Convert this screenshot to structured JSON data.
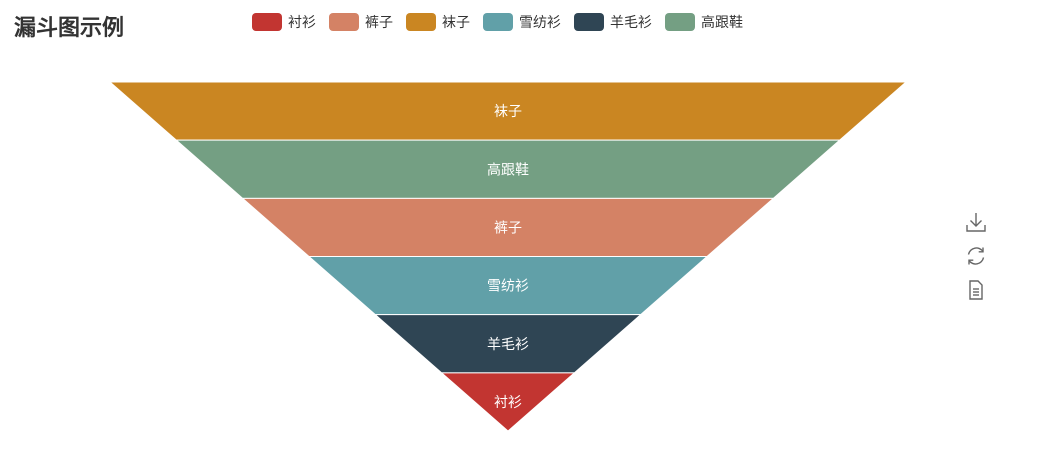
{
  "chart_data": {
    "type": "funnel",
    "title": "漏斗图示例",
    "legend": [
      "衬衫",
      "裤子",
      "袜子",
      "雪纺衫",
      "羊毛衫",
      "高跟鞋"
    ],
    "colors": {
      "衬衫": "#c23531",
      "裤子": "#d48265",
      "袜子": "#ca8622",
      "雪纺衫": "#61a0a8",
      "羊毛衫": "#2f4554",
      "高跟鞋": "#749f83"
    },
    "layers": [
      "袜子",
      "高跟鞋",
      "裤子",
      "雪纺衫",
      "羊毛衫",
      "衬衫"
    ],
    "legend_placement": "top",
    "sort": "descending"
  },
  "toolbox": {
    "icons": [
      "download-icon",
      "refresh-icon",
      "data-view-icon"
    ]
  }
}
